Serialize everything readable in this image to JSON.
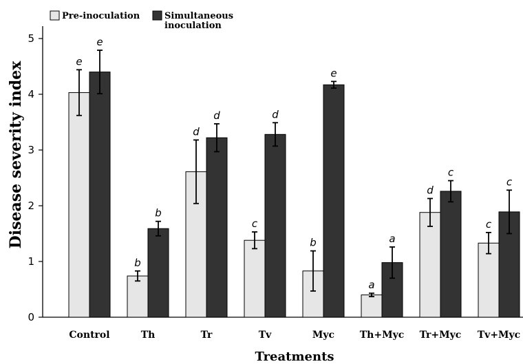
{
  "chart_data": {
    "type": "bar",
    "xlabel": "Treatments",
    "ylabel": "Disease severity index",
    "ylim": [
      0,
      5
    ],
    "yticks": [
      "0",
      "1",
      "2",
      "3",
      "4",
      "5"
    ],
    "grid": false,
    "legend_position": "top-left",
    "categories": [
      "Control",
      "Th",
      "Tr",
      "Tv",
      "Myc",
      "Th+Myc",
      "Tr+Myc",
      "Tv+Myc"
    ],
    "series": [
      {
        "name": "Pre-inoculation",
        "color": "#e6e6e6",
        "values": [
          4.03,
          0.74,
          2.61,
          1.38,
          0.83,
          0.4,
          1.88,
          1.33
        ],
        "errors": [
          0.41,
          0.09,
          0.57,
          0.15,
          0.36,
          0.03,
          0.25,
          0.19
        ],
        "labels": [
          "e",
          "b",
          "d",
          "c",
          "b",
          "a",
          "d",
          "c"
        ]
      },
      {
        "name": "Simultaneous inoculation",
        "color": "#333333",
        "values": [
          4.4,
          1.59,
          3.22,
          3.28,
          4.17,
          0.98,
          2.26,
          1.89
        ],
        "errors": [
          0.39,
          0.13,
          0.25,
          0.21,
          0.06,
          0.28,
          0.19,
          0.39
        ],
        "labels": [
          "e",
          "b",
          "d",
          "d",
          "e",
          "a",
          "c",
          "c"
        ]
      }
    ],
    "legend": [
      {
        "lines": [
          "Pre-inoculation"
        ]
      },
      {
        "lines": [
          "Simultaneous",
          "inoculation"
        ]
      }
    ]
  }
}
